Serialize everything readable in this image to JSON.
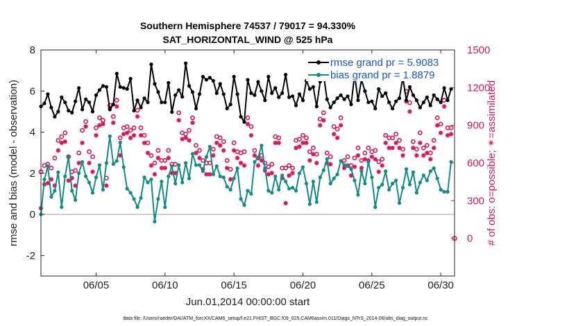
{
  "chart_data": {
    "type": "line",
    "title": "Southern Hemisphere 74537 / 79017 = 94.330%",
    "subtitle": "SAT_HORIZONTAL_WIND @ 525 hPa",
    "xlabel": "Jun.01,2014 00:00:00 start",
    "ylabel": "rmse and bias (model - observation)",
    "y2label": "# of obs: o=possible; ✴=assimilated",
    "footnote": "data file: /Users/raeder/DAI/ATM_forcXX/CAM6_setup/f.e21.FHIST_BGC.f09_025.CAM6assim.011/Diags_NTrS_2014-06/obs_diag_output.nc",
    "xlim": [
      1.0,
      31.0
    ],
    "ylim": [
      -3,
      8
    ],
    "y2lim": [
      -300,
      1500
    ],
    "x_ticks": [
      5,
      10,
      15,
      20,
      25,
      30
    ],
    "x_tick_labels": [
      "06/05",
      "06/10",
      "06/15",
      "06/20",
      "06/25",
      "06/30"
    ],
    "y_ticks": [
      -2,
      0,
      2,
      4,
      6,
      8
    ],
    "y_tick_labels": [
      "-2",
      "0",
      "2",
      "4",
      "6",
      "8"
    ],
    "y2_ticks": [
      0,
      300,
      600,
      900,
      1200,
      1500
    ],
    "y2_tick_labels": [
      "0",
      "300",
      "600",
      "900",
      "1200",
      "1500"
    ],
    "legend": [
      "rmse grand pr = 5.9083",
      "bias grand pr = 1.8879"
    ],
    "legend_position": "top-right",
    "zero_line": 0,
    "x": [
      1.0,
      1.25,
      1.5,
      1.75,
      2.0,
      2.25,
      2.5,
      2.75,
      3.0,
      3.25,
      3.5,
      3.75,
      4.0,
      4.25,
      4.5,
      4.75,
      5.0,
      5.25,
      5.5,
      5.75,
      6.0,
      6.25,
      6.5,
      6.75,
      7.0,
      7.25,
      7.5,
      7.75,
      8.0,
      8.25,
      8.5,
      8.75,
      9.0,
      9.25,
      9.5,
      9.75,
      10.0,
      10.25,
      10.5,
      10.75,
      11.0,
      11.25,
      11.5,
      11.75,
      12.0,
      12.25,
      12.5,
      12.75,
      13.0,
      13.25,
      13.5,
      13.75,
      14.0,
      14.25,
      14.5,
      14.75,
      15.0,
      15.25,
      15.5,
      15.75,
      16.0,
      16.25,
      16.5,
      16.75,
      17.0,
      17.25,
      17.5,
      17.75,
      18.0,
      18.25,
      18.5,
      18.75,
      19.0,
      19.25,
      19.5,
      19.75,
      20.0,
      20.25,
      20.5,
      20.75,
      21.0,
      21.25,
      21.5,
      21.75,
      22.0,
      22.25,
      22.5,
      22.75,
      23.0,
      23.25,
      23.5,
      23.75,
      24.0,
      24.25,
      24.5,
      24.75,
      25.0,
      25.25,
      25.5,
      25.75,
      26.0,
      26.25,
      26.5,
      26.75,
      27.0,
      27.25,
      27.5,
      27.75,
      28.0,
      28.25,
      28.5,
      28.75,
      29.0,
      29.25,
      29.5,
      29.75,
      30.0,
      30.25,
      30.5,
      30.75
    ],
    "series": [
      {
        "name": "rmse",
        "color": "#000000",
        "values": [
          5.25,
          5.4,
          5.85,
          5.2,
          4.75,
          5.0,
          5.7,
          5.45,
          5.05,
          4.95,
          5.5,
          6.15,
          5.1,
          5.6,
          5.45,
          5.0,
          5.8,
          6.05,
          6.25,
          6.2,
          5.1,
          5.35,
          6.85,
          6.2,
          6.15,
          6.1,
          6.6,
          5.05,
          5.55,
          5.2,
          5.65,
          5.45,
          7.3,
          6.35,
          5.95,
          5.45,
          5.45,
          6.4,
          4.98,
          5.8,
          6.05,
          5.72,
          7.35,
          6.25,
          5.95,
          5.15,
          5.85,
          6.7,
          6.55,
          6.65,
          6.5,
          5.9,
          6.35,
          5.85,
          5.15,
          5.35,
          6.7,
          5.85,
          4.75,
          4.5,
          6.55,
          5.9,
          5.8,
          6.45,
          6.0,
          5.55,
          6.7,
          5.9,
          6.15,
          5.7,
          5.9,
          6.8,
          5.7,
          5.75,
          5.3,
          5.85,
          5.55,
          6.5,
          6.1,
          6.2,
          5.25,
          6.45,
          6.8,
          5.6,
          5.2,
          5.45,
          5.65,
          5.8,
          5.6,
          5.75,
          5.35,
          6.8,
          5.55,
          6.55,
          6.0,
          5.45,
          5.5,
          5.15,
          6.1,
          5.75,
          5.9,
          5.45,
          5.15,
          5.5,
          5.65,
          6.65,
          5.55,
          6.2,
          5.8,
          5.55,
          5.2,
          5.45,
          5.7,
          5.3,
          5.8,
          5.6,
          5.45,
          6.15,
          5.55,
          6.1
        ]
      },
      {
        "name": "bias",
        "color": "#138a85",
        "values": [
          0.0,
          1.7,
          2.35,
          0.85,
          1.15,
          2.05,
          0.35,
          1.85,
          2.8,
          1.15,
          0.7,
          2.0,
          2.55,
          1.85,
          1.55,
          1.05,
          1.8,
          2.4,
          1.2,
          2.5,
          3.8,
          2.45,
          2.6,
          3.5,
          2.3,
          1.25,
          1.05,
          0.75,
          0.35,
          0.8,
          1.8,
          1.55,
          1.7,
          -0.35,
          0.75,
          1.6,
          0.35,
          1.85,
          2.35,
          1.5,
          2.4,
          1.55,
          2.5,
          1.75,
          2.95,
          2.4,
          2.4,
          2.1,
          2.8,
          3.3,
          1.95,
          2.35,
          1.85,
          1.8,
          1.35,
          1.2,
          1.75,
          2.25,
          0.75,
          0.45,
          1.15,
          1.0,
          2.55,
          2.75,
          3.35,
          2.25,
          1.15,
          1.05,
          1.85,
          1.2,
          1.9,
          1.6,
          1.25,
          1.3,
          1.15,
          2.0,
          2.3,
          1.5,
          0.5,
          1.6,
          0.6,
          1.8,
          2.15,
          2.7,
          1.5,
          1.75,
          1.95,
          2.6,
          2.4,
          2.35,
          2.2,
          1.65,
          0.95,
          2.1,
          1.5,
          2.55,
          1.8,
          0.35,
          1.3,
          1.45,
          2.1,
          1.2,
          1.5,
          1.65,
          0.55,
          1.3,
          2.2,
          1.45,
          2.05,
          1.05,
          1.55,
          1.9,
          1.65,
          2.1,
          2.25,
          1.75,
          1.2,
          1.1,
          1.1,
          2.55
        ]
      },
      {
        "name": "obs possible",
        "color": "#d6175b",
        "axis": "right",
        "marker": "o",
        "values": [
          530,
          580,
          590,
          560,
          640,
          780,
          810,
          840,
          650,
          530,
          540,
          680,
          860,
          930,
          690,
          650,
          880,
          960,
          940,
          480,
          1060,
          970,
          1100,
          800,
          880,
          890,
          860,
          880,
          1020,
          880,
          820,
          760,
          660,
          600,
          700,
          620,
          620,
          700,
          590,
          590,
          1000,
          840,
          830,
          860,
          960,
          740,
          700,
          620,
          600,
          600,
          710,
          810,
          800,
          770,
          620,
          550,
          760,
          690,
          680,
          690,
          960,
          890,
          700,
          640,
          660,
          600,
          570,
          590,
          810,
          800,
          560,
          560,
          580,
          560,
          780,
          790,
          820,
          800,
          690,
          720,
          670,
          950,
          1000,
          680,
          650,
          890,
          870,
          960,
          620,
          650,
          580,
          640,
          720,
          620,
          680,
          720,
          690,
          700,
          610,
          630,
          820,
          800,
          800,
          830,
          780,
          710,
          1170,
          1080,
          770,
          710,
          840,
          720,
          740,
          680,
          780,
          960,
          910,
          1100,
          880,
          880
        ]
      },
      {
        "name": "obs assimilated",
        "color": "#d6175b",
        "axis": "right",
        "marker": "*",
        "values": [
          240,
          430,
          440,
          470,
          420,
          700,
          760,
          770,
          460,
          480,
          420,
          600,
          760,
          890,
          600,
          530,
          820,
          900,
          910,
          420,
          1040,
          920,
          1050,
          660,
          830,
          840,
          800,
          820,
          970,
          820,
          760,
          680,
          580,
          510,
          640,
          560,
          560,
          640,
          520,
          520,
          940,
          790,
          800,
          780,
          920,
          680,
          640,
          550,
          510,
          510,
          660,
          760,
          740,
          700,
          560,
          470,
          700,
          640,
          600,
          580,
          910,
          820,
          660,
          580,
          620,
          540,
          510,
          520,
          760,
          760,
          480,
          280,
          500,
          520,
          720,
          730,
          760,
          760,
          620,
          670,
          600,
          900,
          940,
          600,
          590,
          830,
          800,
          900,
          560,
          580,
          500,
          570,
          660,
          560,
          630,
          620,
          650,
          630,
          530,
          580,
          760,
          720,
          720,
          760,
          720,
          660,
          1090,
          1010,
          720,
          660,
          760,
          660,
          680,
          630,
          720,
          900,
          840,
          1050,
          820,
          830
        ]
      }
    ],
    "extra_marker": {
      "x": 31.0,
      "y2": 0,
      "color": "#d6175b"
    }
  }
}
